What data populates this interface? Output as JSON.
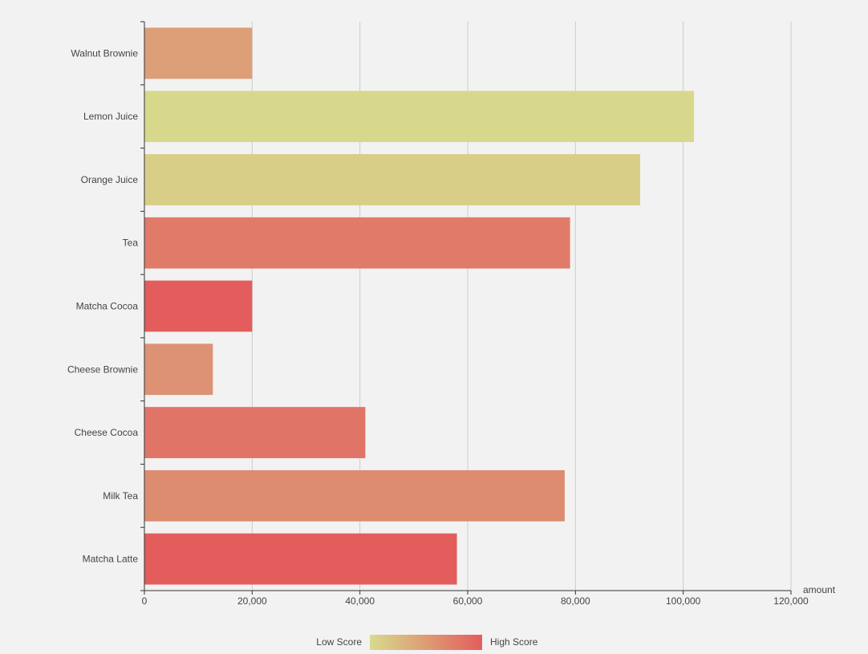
{
  "chart_data": {
    "type": "bar",
    "orientation": "horizontal",
    "title": "",
    "xlabel": "amount",
    "ylabel": "",
    "xlim": [
      0,
      120000
    ],
    "x_ticks": [
      0,
      20000,
      40000,
      60000,
      80000,
      100000,
      120000
    ],
    "x_tick_labels": [
      "0",
      "20,000",
      "40,000",
      "60,000",
      "80,000",
      "100,000",
      "120,000"
    ],
    "grid": true,
    "categories": [
      "Walnut Brownie",
      "Lemon Juice",
      "Orange Juice",
      "Tea",
      "Matcha Cocoa",
      "Cheese Brownie",
      "Cheese Cocoa",
      "Milk Tea",
      "Matcha Latte"
    ],
    "values": [
      20000,
      102000,
      92000,
      79000,
      20000,
      12700,
      41000,
      78000,
      58000
    ],
    "scores": [
      45,
      2,
      10,
      75,
      100,
      55,
      80,
      60,
      100
    ],
    "visual_map": {
      "min": 0,
      "max": 100,
      "low_label": "Low Score",
      "high_label": "High Score",
      "low_color": "#d7db8c",
      "high_color": "#e35d5d"
    }
  }
}
